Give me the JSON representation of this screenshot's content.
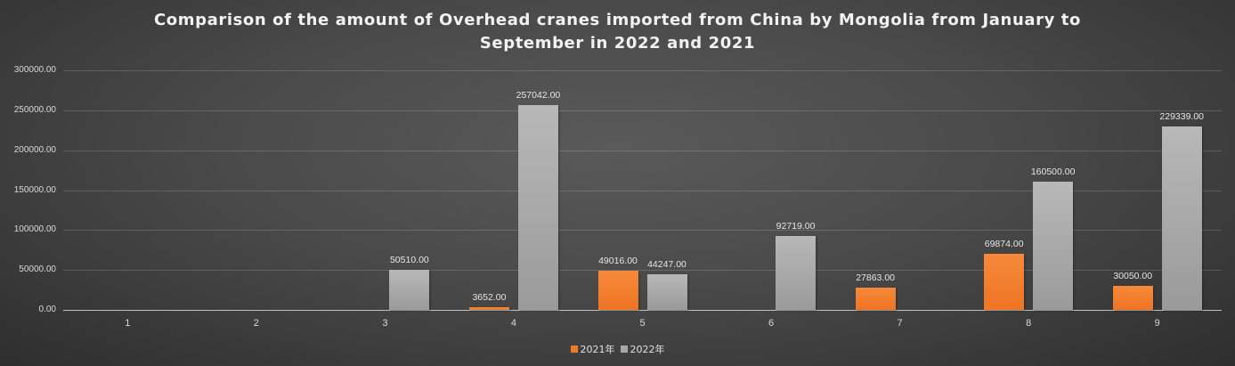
{
  "chart_data": {
    "type": "bar",
    "title": "Comparison of the amount of Overhead cranes imported from China by Mongolia from January to September in 2022 and 2021",
    "title_lines": [
      "Comparison of the amount of Overhead cranes imported from China by Mongolia from January to",
      "September in 2022 and 2021"
    ],
    "categories": [
      "1",
      "2",
      "3",
      "4",
      "5",
      "6",
      "7",
      "8",
      "9"
    ],
    "series": [
      {
        "name": "2021年",
        "color": "#f07a2a",
        "values": [
          null,
          null,
          null,
          3652.0,
          49016.0,
          null,
          27863.0,
          69874.0,
          30050.0
        ]
      },
      {
        "name": "2022年",
        "color": "#a8a8a8",
        "values": [
          null,
          null,
          50510.0,
          257042.0,
          44247.0,
          92719.0,
          null,
          160500.0,
          229339.0
        ]
      }
    ],
    "xlabel": "",
    "ylabel": "",
    "ylim": [
      0,
      300000
    ],
    "yticks": [
      "0.00",
      "50000.00",
      "100000.00",
      "150000.00",
      "200000.00",
      "250000.00",
      "300000.00"
    ],
    "grid": true,
    "legend_position": "bottom"
  }
}
